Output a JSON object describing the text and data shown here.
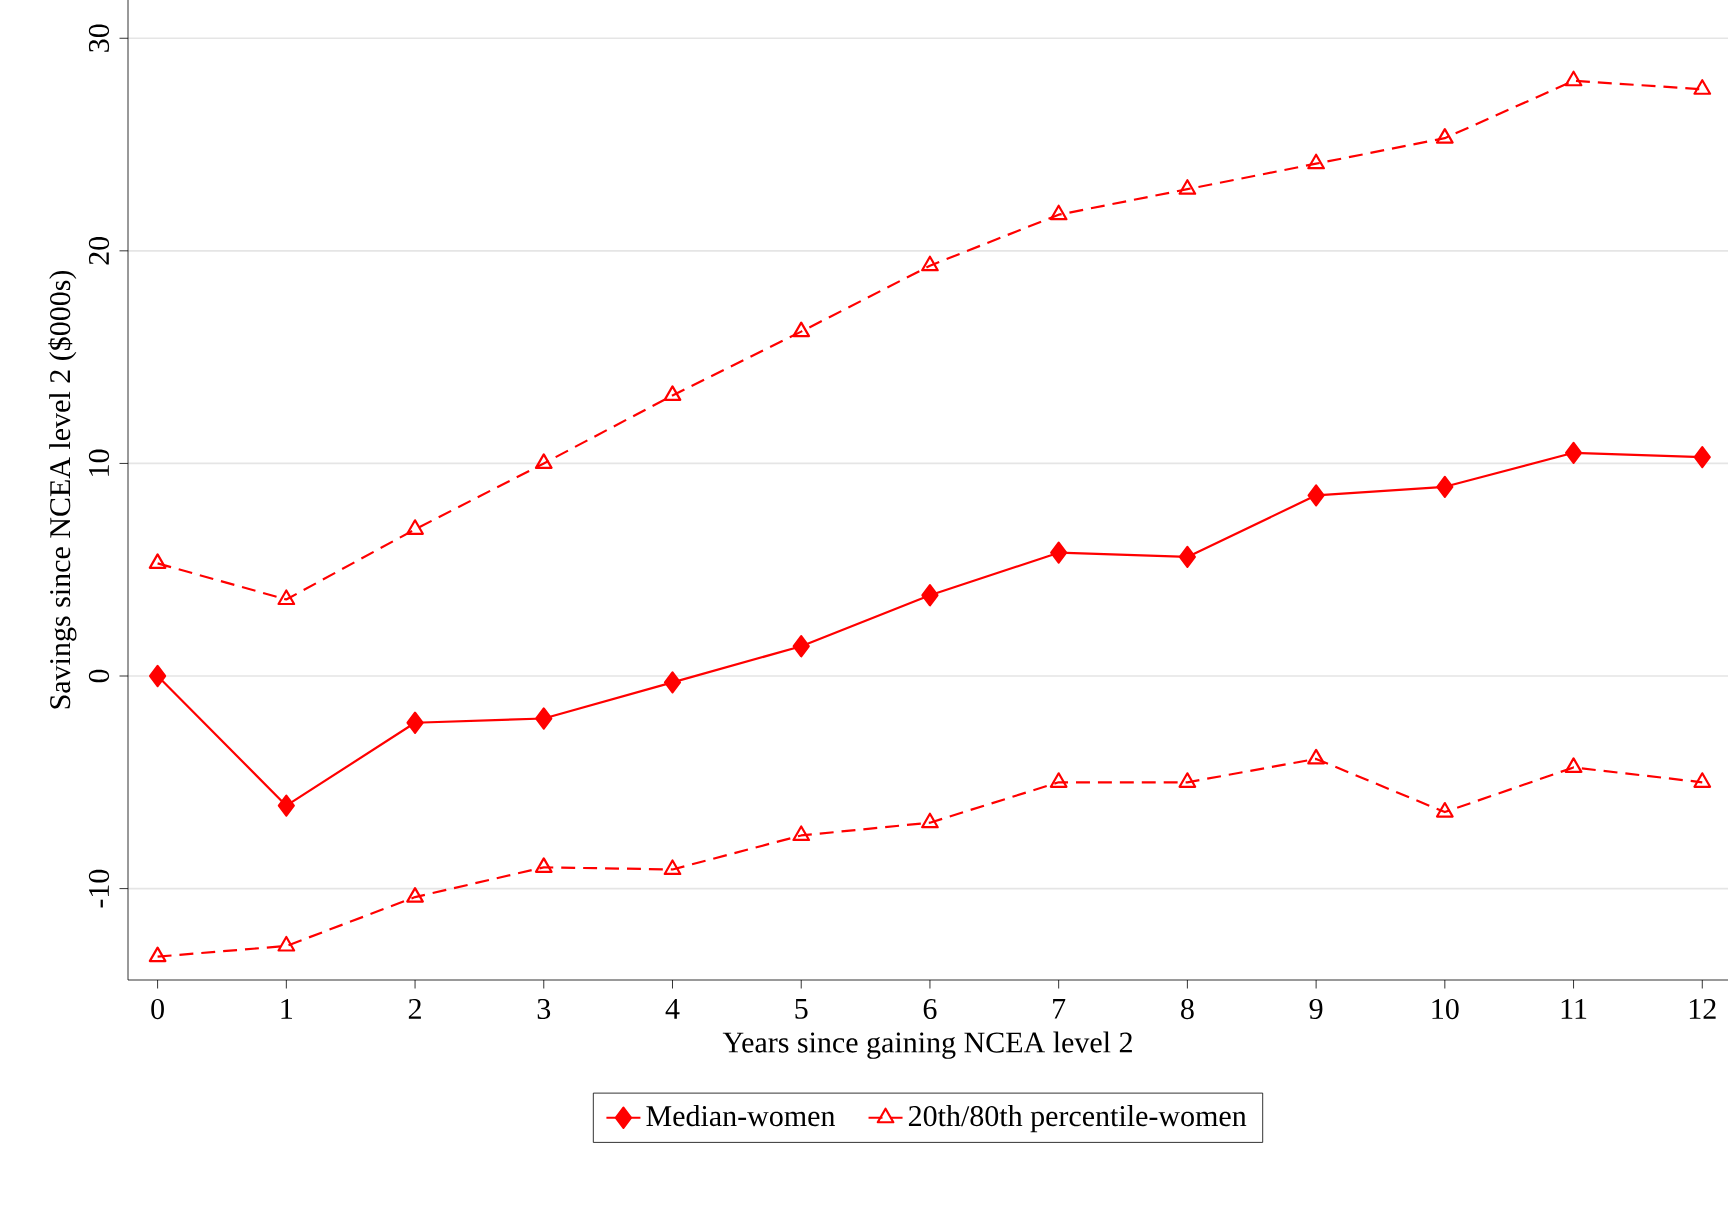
{
  "chart_data": {
    "type": "line",
    "xlabel": "Years since gaining NCEA level 2",
    "ylabel": "Savings since NCEA level 2 ($000s)",
    "x": [
      0,
      1,
      2,
      3,
      4,
      5,
      6,
      7,
      8,
      9,
      10,
      11,
      12
    ],
    "xlim": [
      -0.23,
      12.2
    ],
    "xticks": [
      0,
      1,
      2,
      3,
      4,
      5,
      6,
      7,
      8,
      9,
      10,
      11,
      12
    ],
    "ylim": [
      -14.3,
      31.8
    ],
    "yticks": [
      -10,
      0,
      10,
      20,
      30
    ],
    "grid": "y",
    "legend": "bottom",
    "series": [
      {
        "name": "Median-women",
        "color": "#ff0000",
        "marker": "diamond",
        "line_style": "solid",
        "values": [
          0,
          -6.1,
          -2.2,
          -2.0,
          -0.3,
          1.4,
          3.8,
          5.8,
          5.6,
          8.5,
          8.9,
          10.5,
          10.3
        ]
      },
      {
        "name": "20th/80th percentile-women",
        "color": "#ff0000",
        "marker": "triangle",
        "line_style": "dashed",
        "values": [
          5.3,
          3.6,
          6.9,
          10.0,
          13.2,
          16.2,
          19.3,
          21.7,
          22.9,
          24.1,
          25.3,
          28.0,
          27.6
        ]
      },
      {
        "color": "#ff0000",
        "marker": "triangle",
        "line_style": "dashed",
        "values": [
          -13.2,
          -12.7,
          -10.4,
          -9.0,
          -9.1,
          -7.5,
          -6.9,
          -5.0,
          -5.0,
          -3.9,
          -6.4,
          -4.3,
          -5.0
        ]
      }
    ]
  }
}
